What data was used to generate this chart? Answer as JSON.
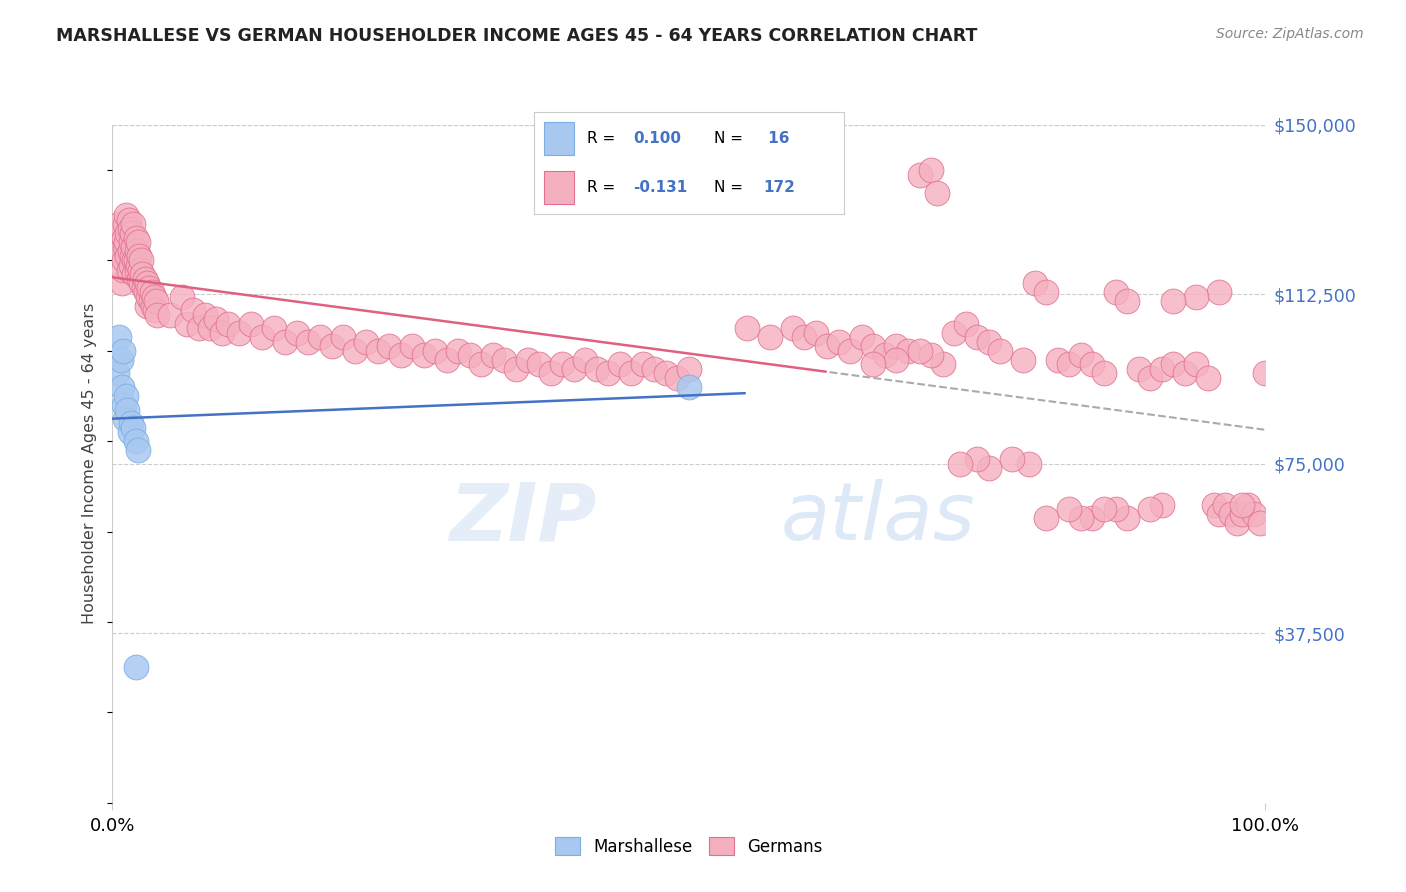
{
  "title": "MARSHALLESE VS GERMAN HOUSEHOLDER INCOME AGES 45 - 64 YEARS CORRELATION CHART",
  "source": "Source: ZipAtlas.com",
  "ylabel": "Householder Income Ages 45 - 64 years",
  "xlim": [
    0,
    1.0
  ],
  "ylim": [
    0,
    150000
  ],
  "yticks": [
    37500,
    75000,
    112500,
    150000
  ],
  "ytick_labels": [
    "$37,500",
    "$75,000",
    "$112,500",
    "$150,000"
  ],
  "xtick_labels": [
    "0.0%",
    "100.0%"
  ],
  "watermark_zip": "ZIP",
  "watermark_atlas": "atlas",
  "marshallese_color": "#a8c8f0",
  "marshallese_edge": "#7ab0e0",
  "german_color": "#f5b0c0",
  "german_edge": "#e07090",
  "blue_line_color": "#4472c4",
  "pink_line_color": "#e06080",
  "background_color": "#ffffff",
  "grid_color": "#cccccc",
  "title_color": "#222222",
  "source_color": "#888888",
  "ylabel_color": "#444444",
  "tick_color": "#4472c4",
  "legend_border_color": "#cccccc",
  "marshallese_points": [
    [
      0.004,
      95000
    ],
    [
      0.006,
      103000
    ],
    [
      0.007,
      98000
    ],
    [
      0.008,
      92000
    ],
    [
      0.009,
      100000
    ],
    [
      0.01,
      88000
    ],
    [
      0.011,
      85000
    ],
    [
      0.012,
      90000
    ],
    [
      0.013,
      87000
    ],
    [
      0.015,
      82000
    ],
    [
      0.016,
      84000
    ],
    [
      0.018,
      83000
    ],
    [
      0.02,
      80000
    ],
    [
      0.022,
      78000
    ],
    [
      0.5,
      92000
    ],
    [
      0.02,
      30000
    ]
  ],
  "german_points_low": [
    [
      0.006,
      128000
    ],
    [
      0.007,
      122000
    ],
    [
      0.008,
      115000
    ],
    [
      0.009,
      118000
    ],
    [
      0.01,
      125000
    ],
    [
      0.01,
      120000
    ],
    [
      0.011,
      128000
    ],
    [
      0.011,
      123000
    ],
    [
      0.012,
      130000
    ],
    [
      0.012,
      124000
    ],
    [
      0.013,
      126000
    ],
    [
      0.013,
      121000
    ],
    [
      0.014,
      129000
    ],
    [
      0.014,
      118000
    ],
    [
      0.015,
      127000
    ],
    [
      0.015,
      122000
    ],
    [
      0.016,
      124000
    ],
    [
      0.016,
      119000
    ],
    [
      0.017,
      126000
    ],
    [
      0.017,
      121000
    ],
    [
      0.018,
      128000
    ],
    [
      0.018,
      123000
    ],
    [
      0.019,
      120000
    ],
    [
      0.019,
      117000
    ],
    [
      0.02,
      125000
    ],
    [
      0.02,
      120000
    ],
    [
      0.021,
      122000
    ],
    [
      0.021,
      118000
    ],
    [
      0.022,
      124000
    ],
    [
      0.022,
      119000
    ],
    [
      0.023,
      121000
    ],
    [
      0.023,
      116000
    ],
    [
      0.024,
      118000
    ],
    [
      0.025,
      120000
    ],
    [
      0.025,
      115000
    ],
    [
      0.026,
      117000
    ],
    [
      0.027,
      114000
    ],
    [
      0.028,
      116000
    ],
    [
      0.029,
      113000
    ],
    [
      0.03,
      115000
    ],
    [
      0.03,
      110000
    ],
    [
      0.031,
      112000
    ],
    [
      0.032,
      114000
    ],
    [
      0.033,
      111000
    ],
    [
      0.034,
      113000
    ],
    [
      0.035,
      110000
    ],
    [
      0.036,
      112000
    ],
    [
      0.037,
      109000
    ],
    [
      0.038,
      111000
    ],
    [
      0.039,
      108000
    ]
  ],
  "german_points_mid": [
    [
      0.05,
      108000
    ],
    [
      0.06,
      112000
    ],
    [
      0.065,
      106000
    ],
    [
      0.07,
      109000
    ],
    [
      0.075,
      105000
    ],
    [
      0.08,
      108000
    ],
    [
      0.085,
      105000
    ],
    [
      0.09,
      107000
    ],
    [
      0.095,
      104000
    ],
    [
      0.1,
      106000
    ],
    [
      0.11,
      104000
    ],
    [
      0.12,
      106000
    ],
    [
      0.13,
      103000
    ],
    [
      0.14,
      105000
    ],
    [
      0.15,
      102000
    ],
    [
      0.16,
      104000
    ],
    [
      0.17,
      102000
    ],
    [
      0.18,
      103000
    ],
    [
      0.19,
      101000
    ],
    [
      0.2,
      103000
    ],
    [
      0.21,
      100000
    ],
    [
      0.22,
      102000
    ],
    [
      0.23,
      100000
    ],
    [
      0.24,
      101000
    ],
    [
      0.25,
      99000
    ],
    [
      0.26,
      101000
    ],
    [
      0.27,
      99000
    ],
    [
      0.28,
      100000
    ],
    [
      0.29,
      98000
    ],
    [
      0.3,
      100000
    ],
    [
      0.31,
      99000
    ],
    [
      0.32,
      97000
    ],
    [
      0.33,
      99000
    ],
    [
      0.34,
      98000
    ],
    [
      0.35,
      96000
    ],
    [
      0.36,
      98000
    ],
    [
      0.37,
      97000
    ],
    [
      0.38,
      95000
    ],
    [
      0.39,
      97000
    ],
    [
      0.4,
      96000
    ],
    [
      0.41,
      98000
    ],
    [
      0.42,
      96000
    ],
    [
      0.43,
      95000
    ],
    [
      0.44,
      97000
    ],
    [
      0.45,
      95000
    ],
    [
      0.46,
      97000
    ],
    [
      0.47,
      96000
    ],
    [
      0.48,
      95000
    ],
    [
      0.49,
      94000
    ],
    [
      0.5,
      96000
    ]
  ],
  "german_points_high": [
    [
      0.55,
      105000
    ],
    [
      0.57,
      103000
    ],
    [
      0.59,
      105000
    ],
    [
      0.6,
      103000
    ],
    [
      0.61,
      104000
    ],
    [
      0.62,
      101000
    ],
    [
      0.63,
      102000
    ],
    [
      0.64,
      100000
    ],
    [
      0.65,
      103000
    ],
    [
      0.66,
      101000
    ],
    [
      0.67,
      99000
    ],
    [
      0.68,
      101000
    ],
    [
      0.69,
      100000
    ],
    [
      0.7,
      139000
    ],
    [
      0.71,
      140000
    ],
    [
      0.715,
      135000
    ],
    [
      0.73,
      104000
    ],
    [
      0.74,
      106000
    ],
    [
      0.75,
      103000
    ],
    [
      0.76,
      102000
    ],
    [
      0.77,
      100000
    ],
    [
      0.79,
      98000
    ],
    [
      0.8,
      115000
    ],
    [
      0.81,
      113000
    ],
    [
      0.82,
      98000
    ],
    [
      0.83,
      97000
    ],
    [
      0.84,
      99000
    ],
    [
      0.85,
      97000
    ],
    [
      0.86,
      95000
    ],
    [
      0.87,
      113000
    ],
    [
      0.88,
      111000
    ],
    [
      0.89,
      96000
    ],
    [
      0.9,
      94000
    ],
    [
      0.91,
      96000
    ],
    [
      0.92,
      97000
    ],
    [
      0.93,
      95000
    ],
    [
      0.94,
      97000
    ],
    [
      0.95,
      94000
    ],
    [
      0.955,
      66000
    ],
    [
      0.96,
      64000
    ],
    [
      0.965,
      66000
    ],
    [
      0.97,
      64000
    ],
    [
      0.975,
      62000
    ],
    [
      0.98,
      64000
    ],
    [
      0.985,
      66000
    ],
    [
      0.99,
      64000
    ],
    [
      0.995,
      62000
    ],
    [
      1.0,
      95000
    ],
    [
      0.98,
      66000
    ],
    [
      0.96,
      113000
    ],
    [
      0.94,
      112000
    ],
    [
      0.92,
      111000
    ],
    [
      0.91,
      66000
    ],
    [
      0.9,
      65000
    ],
    [
      0.88,
      63000
    ],
    [
      0.87,
      65000
    ],
    [
      0.85,
      63000
    ],
    [
      0.86,
      65000
    ],
    [
      0.84,
      63000
    ],
    [
      0.83,
      65000
    ],
    [
      0.81,
      63000
    ],
    [
      0.795,
      75000
    ],
    [
      0.78,
      76000
    ],
    [
      0.76,
      74000
    ],
    [
      0.75,
      76000
    ],
    [
      0.735,
      75000
    ],
    [
      0.72,
      97000
    ],
    [
      0.71,
      99000
    ],
    [
      0.7,
      100000
    ],
    [
      0.68,
      98000
    ],
    [
      0.66,
      97000
    ]
  ]
}
